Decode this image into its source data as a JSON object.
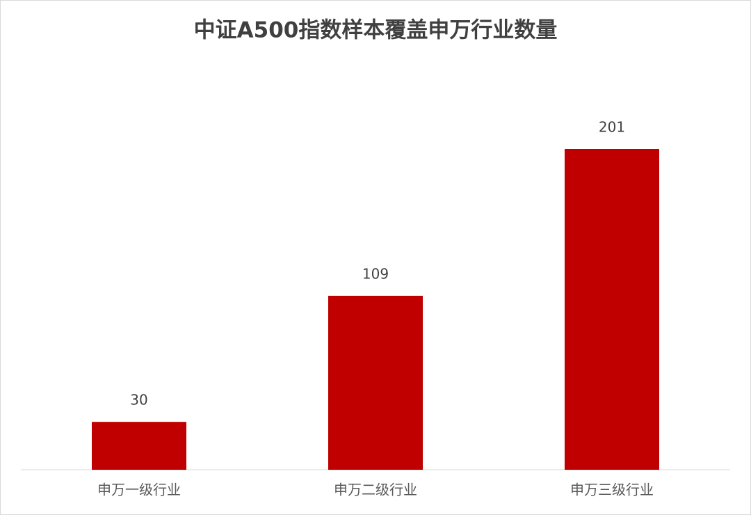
{
  "chart_data": {
    "type": "bar",
    "title": "中证A500指数样本覆盖申万行业数量",
    "categories": [
      "申万一级行业",
      "申万二级行业",
      "申万三级行业"
    ],
    "values": [
      30,
      109,
      201
    ],
    "color": "#c00000",
    "data_labels": true
  }
}
